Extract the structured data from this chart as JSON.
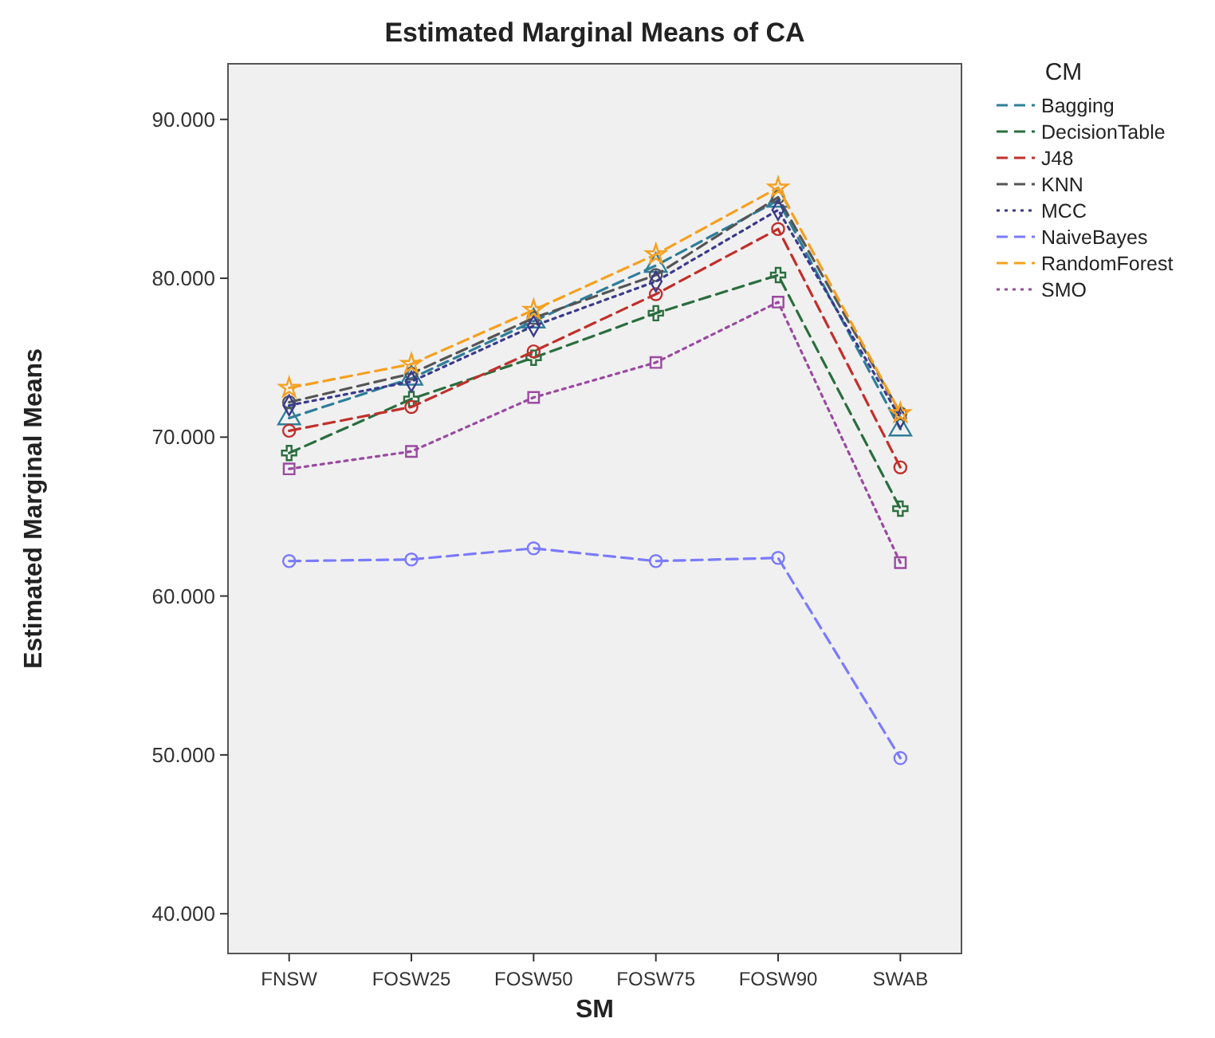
{
  "chart_data": {
    "type": "line",
    "title": "Estimated Marginal Means of CA",
    "xlabel": "SM",
    "ylabel": "Estimated Marginal Means",
    "legend_title": "CM",
    "legend": "right",
    "categories": [
      "FNSW",
      "FOSW25",
      "FOSW50",
      "FOSW75",
      "FOSW90",
      "SWAB"
    ],
    "ylim": [
      37.5,
      93.5
    ],
    "yticks": [
      {
        "value": 40,
        "label": "40.000"
      },
      {
        "value": 50,
        "label": "50.000"
      },
      {
        "value": 60,
        "label": "60.000"
      },
      {
        "value": 70,
        "label": "70.000"
      },
      {
        "value": 80,
        "label": "80.000"
      },
      {
        "value": 90,
        "label": "90.000"
      }
    ],
    "series": [
      {
        "name": "Bagging",
        "color": "#2e7e9a",
        "marker": "triangle",
        "line_style": "dashed",
        "values": [
          71.2,
          73.7,
          77.3,
          80.8,
          84.9,
          70.5
        ]
      },
      {
        "name": "DecisionTable",
        "color": "#2a6e3e",
        "marker": "cross",
        "line_style": "dashed",
        "values": [
          69.0,
          72.4,
          75.0,
          77.8,
          80.2,
          65.5
        ]
      },
      {
        "name": "J48",
        "color": "#c0302c",
        "marker": "circle",
        "line_style": "dashed",
        "values": [
          70.4,
          71.9,
          75.4,
          79.0,
          83.1,
          68.1
        ]
      },
      {
        "name": "KNN",
        "color": "#555555",
        "marker": "circle",
        "line_style": "dashed",
        "values": [
          72.2,
          74.0,
          77.5,
          80.2,
          85.1,
          71.5
        ]
      },
      {
        "name": "MCC",
        "color": "#3a3a8c",
        "marker": "diamond",
        "line_style": "dotted",
        "values": [
          72.0,
          73.5,
          77.0,
          79.8,
          84.3,
          71.2
        ]
      },
      {
        "name": "NaiveBayes",
        "color": "#7a7aff",
        "marker": "circle",
        "line_style": "dashed",
        "values": [
          62.2,
          62.3,
          63.0,
          62.2,
          62.4,
          49.8
        ]
      },
      {
        "name": "RandomForest",
        "color": "#f5a020",
        "marker": "star",
        "line_style": "dashed",
        "values": [
          73.1,
          74.6,
          78.0,
          81.5,
          85.7,
          71.5
        ]
      },
      {
        "name": "SMO",
        "color": "#9a4aa0",
        "marker": "square",
        "line_style": "dotted",
        "values": [
          68.0,
          69.1,
          72.5,
          74.7,
          78.5,
          62.1
        ]
      }
    ]
  }
}
